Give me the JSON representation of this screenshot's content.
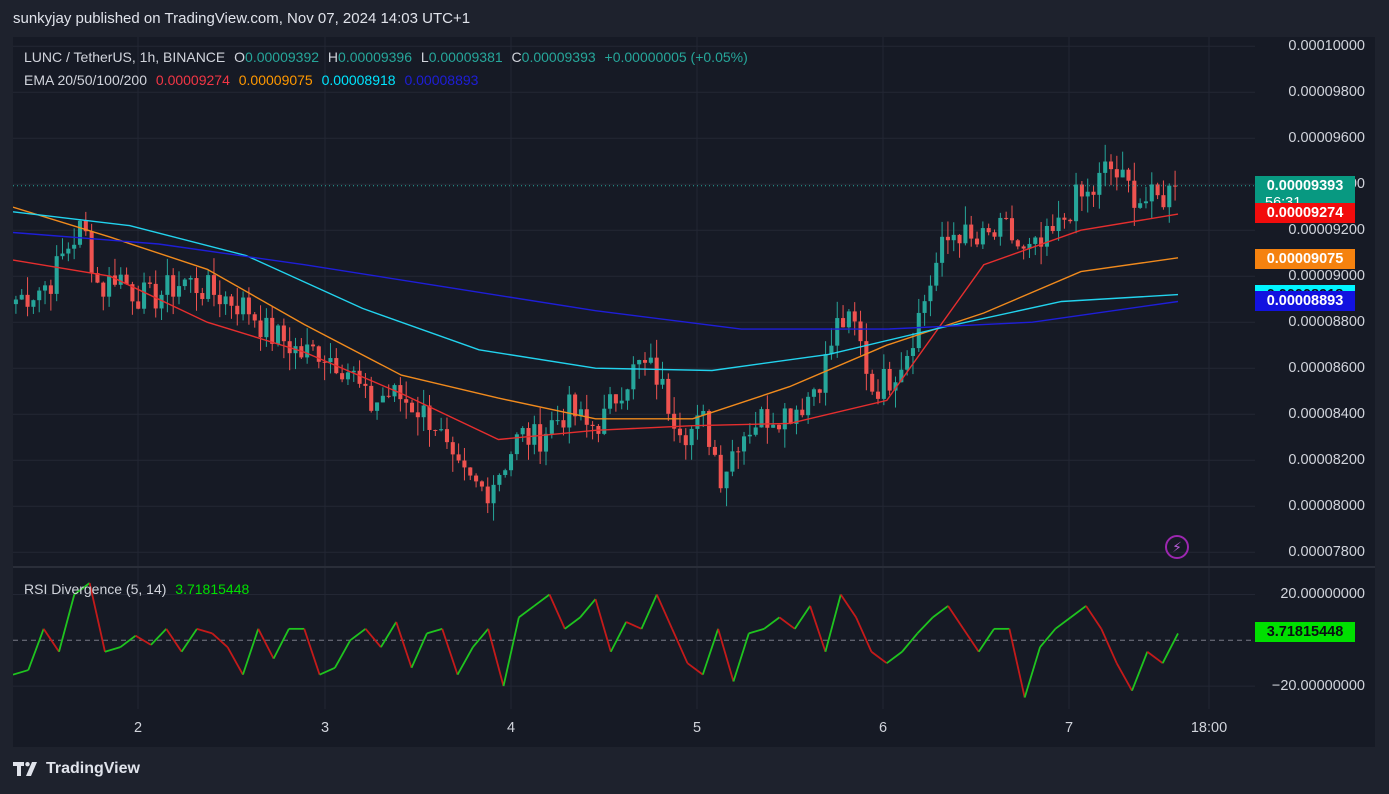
{
  "header": "sunkyjay published on TradingView.com, Nov 07, 2024 14:03 UTC+1",
  "legend": {
    "symbol": "LUNC / TetherUS, 1h, BINANCE",
    "o_label": "O",
    "o": "0.00009392",
    "h_label": "H",
    "h": "0.00009396",
    "l_label": "L",
    "l": "0.00009381",
    "c_label": "C",
    "c": "0.00009393",
    "change": "+0.00000005 (+0.05%)",
    "ema_label": "EMA 20/50/100/200",
    "ema20": "0.00009274",
    "ema50": "0.00009075",
    "ema100": "0.00008918",
    "ema200": "0.00008893"
  },
  "rsi_legend": {
    "label": "RSI Divergence (5, 14)",
    "value": "3.71815448"
  },
  "price_axis": [
    "0.00010000",
    "0.00009800",
    "0.00009600",
    "0.00009400",
    "0.00009200",
    "0.00009000",
    "0.00008800",
    "0.00008600",
    "0.00008400",
    "0.00008200",
    "0.00008000",
    "0.00007800"
  ],
  "price_tags": {
    "last": "0.00009393",
    "countdown": "56:31",
    "ema20": "0.00009274",
    "ema50": "0.00009075",
    "ema100": "0.00008918",
    "ema200": "0.00008893"
  },
  "rsi_axis": [
    "20.00000000",
    "−20.00000000"
  ],
  "time_axis": [
    "2",
    "3",
    "4",
    "5",
    "6",
    "7",
    "18:00"
  ],
  "footer": "TradingView",
  "colors": {
    "up": "#26a69a",
    "down": "#ef5350",
    "ema20": "#e52e2e",
    "ema50": "#f08a1d",
    "ema100": "#22d3ee",
    "ema200": "#1e1ed8",
    "rsi_up": "#1fc41f",
    "rsi_down": "#c41a1a"
  },
  "chart_data": [
    {
      "type": "candlestick",
      "title": "LUNC / TetherUS, 1h, BINANCE",
      "ylim": [
        7.74e-05,
        0.0001004
      ],
      "x_ticks": [
        "2",
        "3",
        "4",
        "5",
        "6",
        "7",
        "18:00"
      ],
      "close_path": [
        8.9e-05,
        8.93e-05,
        8.97e-05,
        9.12e-05,
        9.22e-05,
        8.93e-05,
        9.02e-05,
        8.93e-05,
        8.9e-05,
        8.94e-05,
        8.98e-05,
        8.95e-05,
        8.92e-05,
        8.89e-05,
        8.85e-05,
        8.75e-05,
        8.72e-05,
        8.66e-05,
        8.68e-05,
        8.64e-05,
        8.58e-05,
        8.43e-05,
        8.49e-05,
        8.47e-05,
        8.42e-05,
        8.36e-05,
        8.16e-05,
        8.1e-05,
        8.07e-05,
        8.18e-05,
        8.31e-05,
        8.29e-05,
        8.37e-05,
        8.42e-05,
        8.34e-05,
        8.38e-05,
        8.52e-05,
        8.61e-05,
        8.59e-05,
        8.42e-05,
        8.32e-05,
        8.37e-05,
        8.13e-05,
        8.3e-05,
        8.37e-05,
        8.4e-05,
        8.41e-05,
        8.46e-05,
        8.58e-05,
        8.81e-05,
        8.77e-05,
        8.51e-05,
        8.56e-05,
        8.67e-05,
        8.88e-05,
        9.1e-05,
        9.21e-05,
        9.13e-05,
        9.17e-05,
        9.2e-05,
        9.09e-05,
        9.12e-05,
        9.2e-05,
        9.33e-05,
        9.35e-05,
        9.48e-05,
        9.4e-05,
        9.33e-05,
        9.33e-05,
        9.39e-05
      ],
      "ema": [
        {
          "period": 20,
          "last": 9.274e-05,
          "values": [
            9.07e-05,
            9e-05,
            8.8e-05,
            8.67e-05,
            8.49e-05,
            8.29e-05,
            8.33e-05,
            8.35e-05,
            8.36e-05,
            8.46e-05,
            9.05e-05,
            9.2e-05,
            9.27e-05
          ]
        },
        {
          "period": 50,
          "last": 9.075e-05,
          "values": [
            9.3e-05,
            9.17e-05,
            9.03e-05,
            8.79e-05,
            8.57e-05,
            8.47e-05,
            8.38e-05,
            8.38e-05,
            8.52e-05,
            8.7e-05,
            8.84e-05,
            9.02e-05,
            9.08e-05
          ]
        },
        {
          "period": 100,
          "last": 8.918e-05,
          "values": [
            9.28e-05,
            9.22e-05,
            9.09e-05,
            8.86e-05,
            8.68e-05,
            8.6e-05,
            8.59e-05,
            8.66e-05,
            8.78e-05,
            8.89e-05,
            8.92e-05
          ]
        },
        {
          "period": 200,
          "last": 8.893e-05,
          "values": [
            9.19e-05,
            9.14e-05,
            9.05e-05,
            8.95e-05,
            8.85e-05,
            8.77e-05,
            8.77e-05,
            8.8e-05,
            8.89e-05
          ]
        }
      ]
    },
    {
      "type": "line",
      "title": "RSI Divergence (5, 14)",
      "ylim": [
        -30,
        32
      ],
      "yticks": [
        20,
        -20
      ],
      "last": 3.71815448,
      "values": [
        -15,
        -13,
        5,
        -5,
        20,
        25,
        -5,
        -3,
        2,
        -2,
        5,
        -5,
        5,
        3,
        -3,
        -15,
        5,
        -8,
        5,
        5,
        -15,
        -12,
        0,
        5,
        -3,
        8,
        -12,
        3,
        5,
        -15,
        -3,
        5,
        -20,
        10,
        15,
        20,
        5,
        10,
        18,
        -5,
        8,
        5,
        20,
        5,
        -10,
        -15,
        5,
        -18,
        3,
        5,
        10,
        5,
        15,
        -5,
        20,
        10,
        -5,
        -10,
        -5,
        3,
        10,
        15,
        5,
        -5,
        5,
        5,
        -25,
        -3,
        5,
        10,
        15,
        5,
        -10,
        -22,
        -5,
        -10,
        3
      ]
    }
  ]
}
